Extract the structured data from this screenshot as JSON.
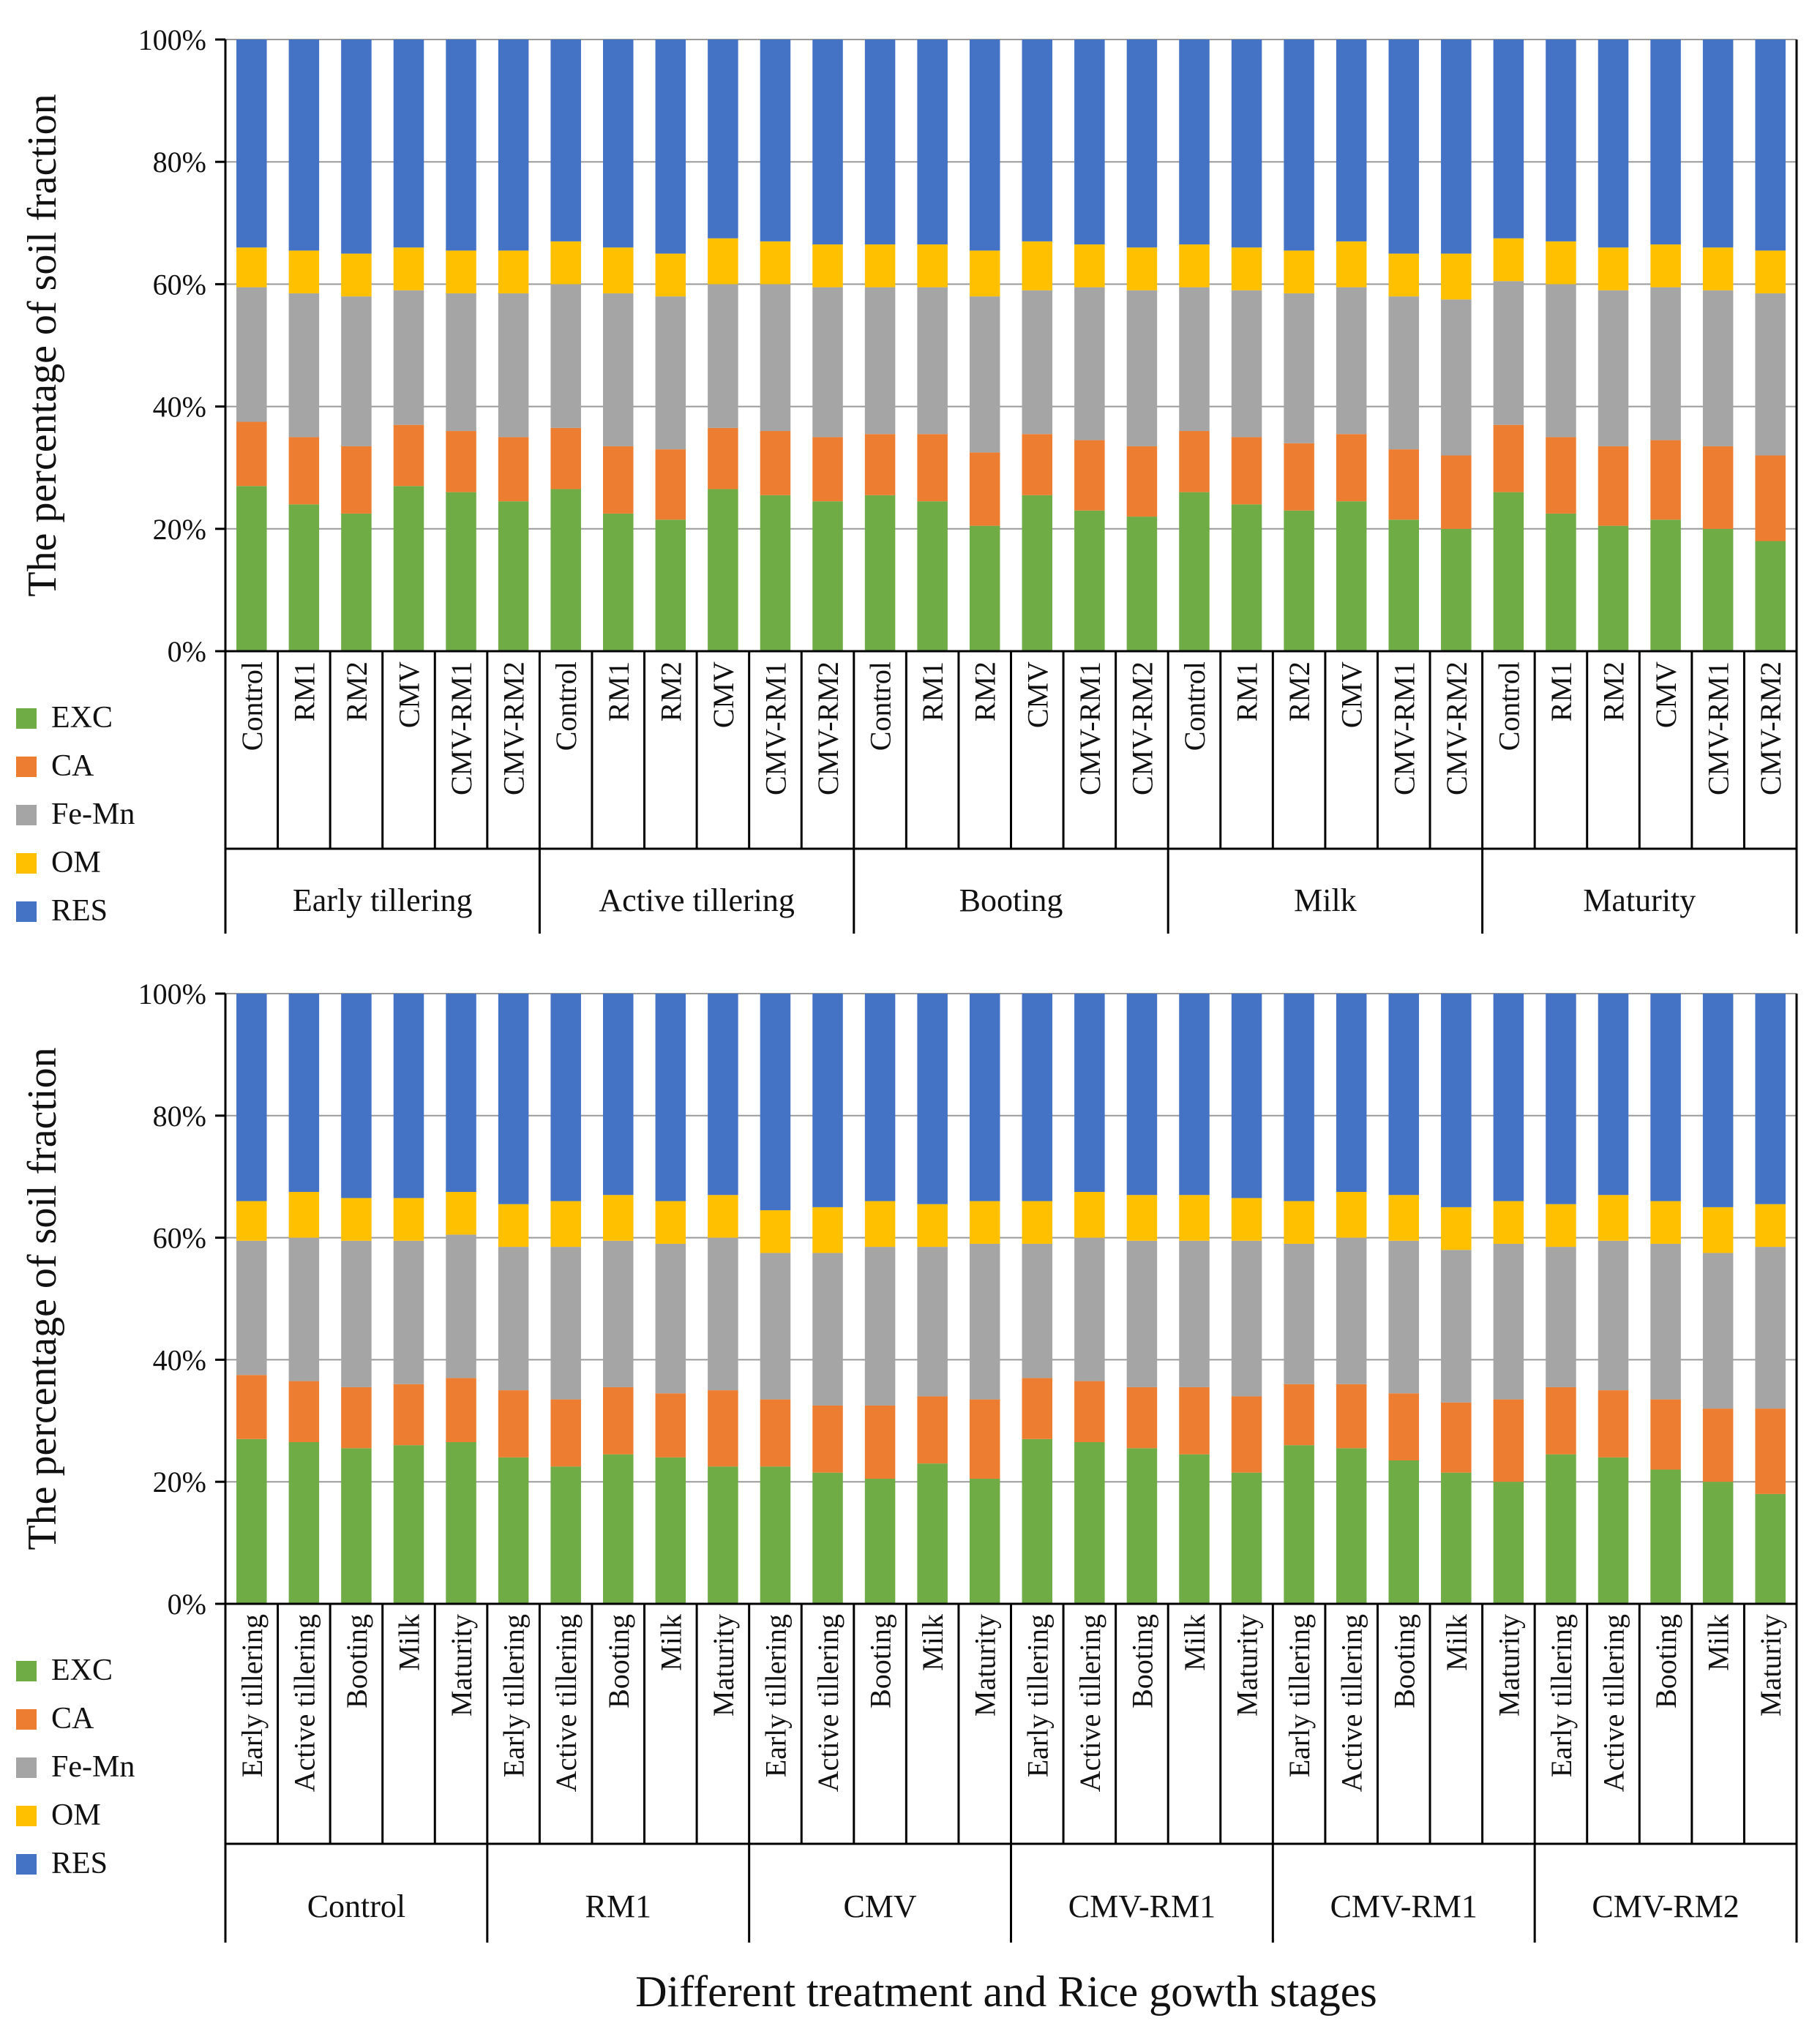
{
  "figure": {
    "xlabel": "Different treatment and Rice gowth stages"
  },
  "legend": [
    {
      "key": "EXC",
      "label": "EXC",
      "color": "#6fac46"
    },
    {
      "key": "CA",
      "label": "CA",
      "color": "#ed7d31"
    },
    {
      "key": "FeMn",
      "label": "Fe-Mn",
      "color": "#a5a5a5"
    },
    {
      "key": "OM",
      "label": "OM",
      "color": "#ffc000"
    },
    {
      "key": "RES",
      "label": "RES",
      "color": "#4472c4"
    }
  ],
  "chart_data": [
    {
      "type": "bar",
      "stacked": true,
      "ylabel": "The percentage of soil fraction",
      "ylim": [
        0,
        100
      ],
      "y_ticks": [
        "0%",
        "20%",
        "40%",
        "60%",
        "80%",
        "100%"
      ],
      "grid": true,
      "legend_position": "bottom-left",
      "groups": [
        {
          "label": "Early tillering",
          "categories": [
            "Control",
            "RM1",
            "RM2",
            "CMV",
            "CMV-RM1",
            "CMV-RM2"
          ]
        },
        {
          "label": "Active tillering",
          "categories": [
            "Control",
            "RM1",
            "RM2",
            "CMV",
            "CMV-RM1",
            "CMV-RM2"
          ]
        },
        {
          "label": "Booting",
          "categories": [
            "Control",
            "RM1",
            "RM2",
            "CMV",
            "CMV-RM1",
            "CMV-RM2"
          ]
        },
        {
          "label": "Milk",
          "categories": [
            "Control",
            "RM1",
            "RM2",
            "CMV",
            "CMV-RM1",
            "CMV-RM2"
          ]
        },
        {
          "label": "Maturity",
          "categories": [
            "Control",
            "RM1",
            "RM2",
            "CMV",
            "CMV-RM1",
            "CMV-RM2"
          ]
        }
      ],
      "series": [
        {
          "name": "EXC",
          "values": [
            27,
            24,
            22.5,
            27,
            26,
            24.5,
            26.5,
            22.5,
            21.5,
            26.5,
            25.5,
            24.5,
            25.5,
            24.5,
            20.5,
            25.5,
            23,
            22,
            26,
            24,
            23,
            24.5,
            21.5,
            20,
            26,
            22.5,
            20.5,
            21.5,
            20,
            18
          ]
        },
        {
          "name": "CA",
          "values": [
            10.5,
            11,
            11,
            10,
            10,
            10.5,
            10,
            11,
            11.5,
            10,
            10.5,
            10.5,
            10,
            11,
            12,
            10,
            11.5,
            11.5,
            10,
            11,
            11,
            11,
            11.5,
            12,
            11,
            12.5,
            13,
            13,
            13.5,
            14
          ]
        },
        {
          "name": "Fe-Mn",
          "values": [
            22,
            23.5,
            24.5,
            22,
            22.5,
            23.5,
            23.5,
            25,
            25,
            23.5,
            24,
            24.5,
            24,
            24,
            25.5,
            23.5,
            25,
            25.5,
            23.5,
            24,
            24.5,
            24,
            25,
            25.5,
            23.5,
            25,
            25.5,
            25,
            25.5,
            26.5
          ]
        },
        {
          "name": "OM",
          "values": [
            6.5,
            7,
            7,
            7,
            7,
            7,
            7,
            7.5,
            7,
            7.5,
            7,
            7,
            7,
            7,
            7.5,
            8,
            7,
            7,
            7,
            7,
            7,
            7.5,
            7,
            7.5,
            7,
            7,
            7,
            7,
            7,
            7
          ]
        },
        {
          "name": "RES",
          "values": [
            34,
            34.5,
            35,
            34,
            34.5,
            34.5,
            33,
            34,
            35,
            32.5,
            33,
            33.5,
            33.5,
            33.5,
            34.5,
            33,
            33.5,
            34,
            33.5,
            34,
            34.5,
            33,
            35,
            35,
            32.5,
            33,
            34,
            33.5,
            34,
            34.5
          ]
        }
      ]
    },
    {
      "type": "bar",
      "stacked": true,
      "ylabel": "The percentage of soil fraction",
      "ylim": [
        0,
        100
      ],
      "y_ticks": [
        "0%",
        "20%",
        "40%",
        "60%",
        "80%",
        "100%"
      ],
      "grid": true,
      "legend_position": "bottom-left",
      "groups": [
        {
          "label": "Control",
          "categories": [
            "Early tillering",
            "Active tillering",
            "Booting",
            "Milk",
            "Maturity"
          ]
        },
        {
          "label": "RM1",
          "categories": [
            "Early tillering",
            "Active tillering",
            "Booting",
            "Milk",
            "Maturity"
          ]
        },
        {
          "label": "CMV",
          "categories": [
            "Early tillering",
            "Active tillering",
            "Booting",
            "Milk",
            "Maturity"
          ]
        },
        {
          "label": "CMV-RM1",
          "categories": [
            "Early tillering",
            "Active tillering",
            "Booting",
            "Milk",
            "Maturity"
          ]
        },
        {
          "label": "CMV-RM1",
          "categories": [
            "Early tillering",
            "Active tillering",
            "Booting",
            "Milk",
            "Maturity"
          ]
        },
        {
          "label": "CMV-RM2",
          "categories": [
            "Early tillering",
            "Active tillering",
            "Booting",
            "Milk",
            "Maturity"
          ]
        }
      ],
      "series": [
        {
          "name": "EXC",
          "values": [
            27,
            26.5,
            25.5,
            26,
            26.5,
            24,
            22.5,
            24.5,
            24,
            22.5,
            22.5,
            21.5,
            20.5,
            23,
            20.5,
            27,
            26.5,
            25.5,
            24.5,
            21.5,
            26,
            25.5,
            23.5,
            21.5,
            20,
            24.5,
            24,
            22,
            20,
            18
          ]
        },
        {
          "name": "CA",
          "values": [
            10.5,
            10,
            10,
            10,
            10.5,
            11,
            11,
            11,
            10.5,
            12.5,
            11,
            11,
            12,
            11,
            13,
            10,
            10,
            10,
            11,
            12.5,
            10,
            10.5,
            11,
            11.5,
            13.5,
            11,
            11,
            11.5,
            12,
            14
          ]
        },
        {
          "name": "Fe-Mn",
          "values": [
            22,
            23.5,
            24,
            23.5,
            23.5,
            23.5,
            25,
            24,
            24.5,
            25,
            24,
            25,
            26,
            24.5,
            25.5,
            22,
            23.5,
            24,
            24,
            25.5,
            23,
            24,
            25,
            25,
            25.5,
            23,
            24.5,
            25.5,
            25.5,
            26.5
          ]
        },
        {
          "name": "OM",
          "values": [
            6.5,
            7.5,
            7,
            7,
            7,
            7,
            7.5,
            7.5,
            7,
            7,
            7,
            7.5,
            7.5,
            7,
            7,
            7,
            7.5,
            7.5,
            7.5,
            7,
            7,
            7.5,
            7.5,
            7,
            7,
            7,
            7.5,
            7,
            7.5,
            7
          ]
        },
        {
          "name": "RES",
          "values": [
            34,
            32.5,
            33.5,
            33.5,
            32.5,
            34.5,
            34,
            33,
            34,
            33,
            35.5,
            35,
            34,
            34.5,
            34,
            34,
            32.5,
            33,
            33,
            33.5,
            34,
            32.5,
            33,
            35,
            34,
            34.5,
            33,
            34,
            35,
            34.5
          ]
        }
      ]
    }
  ]
}
